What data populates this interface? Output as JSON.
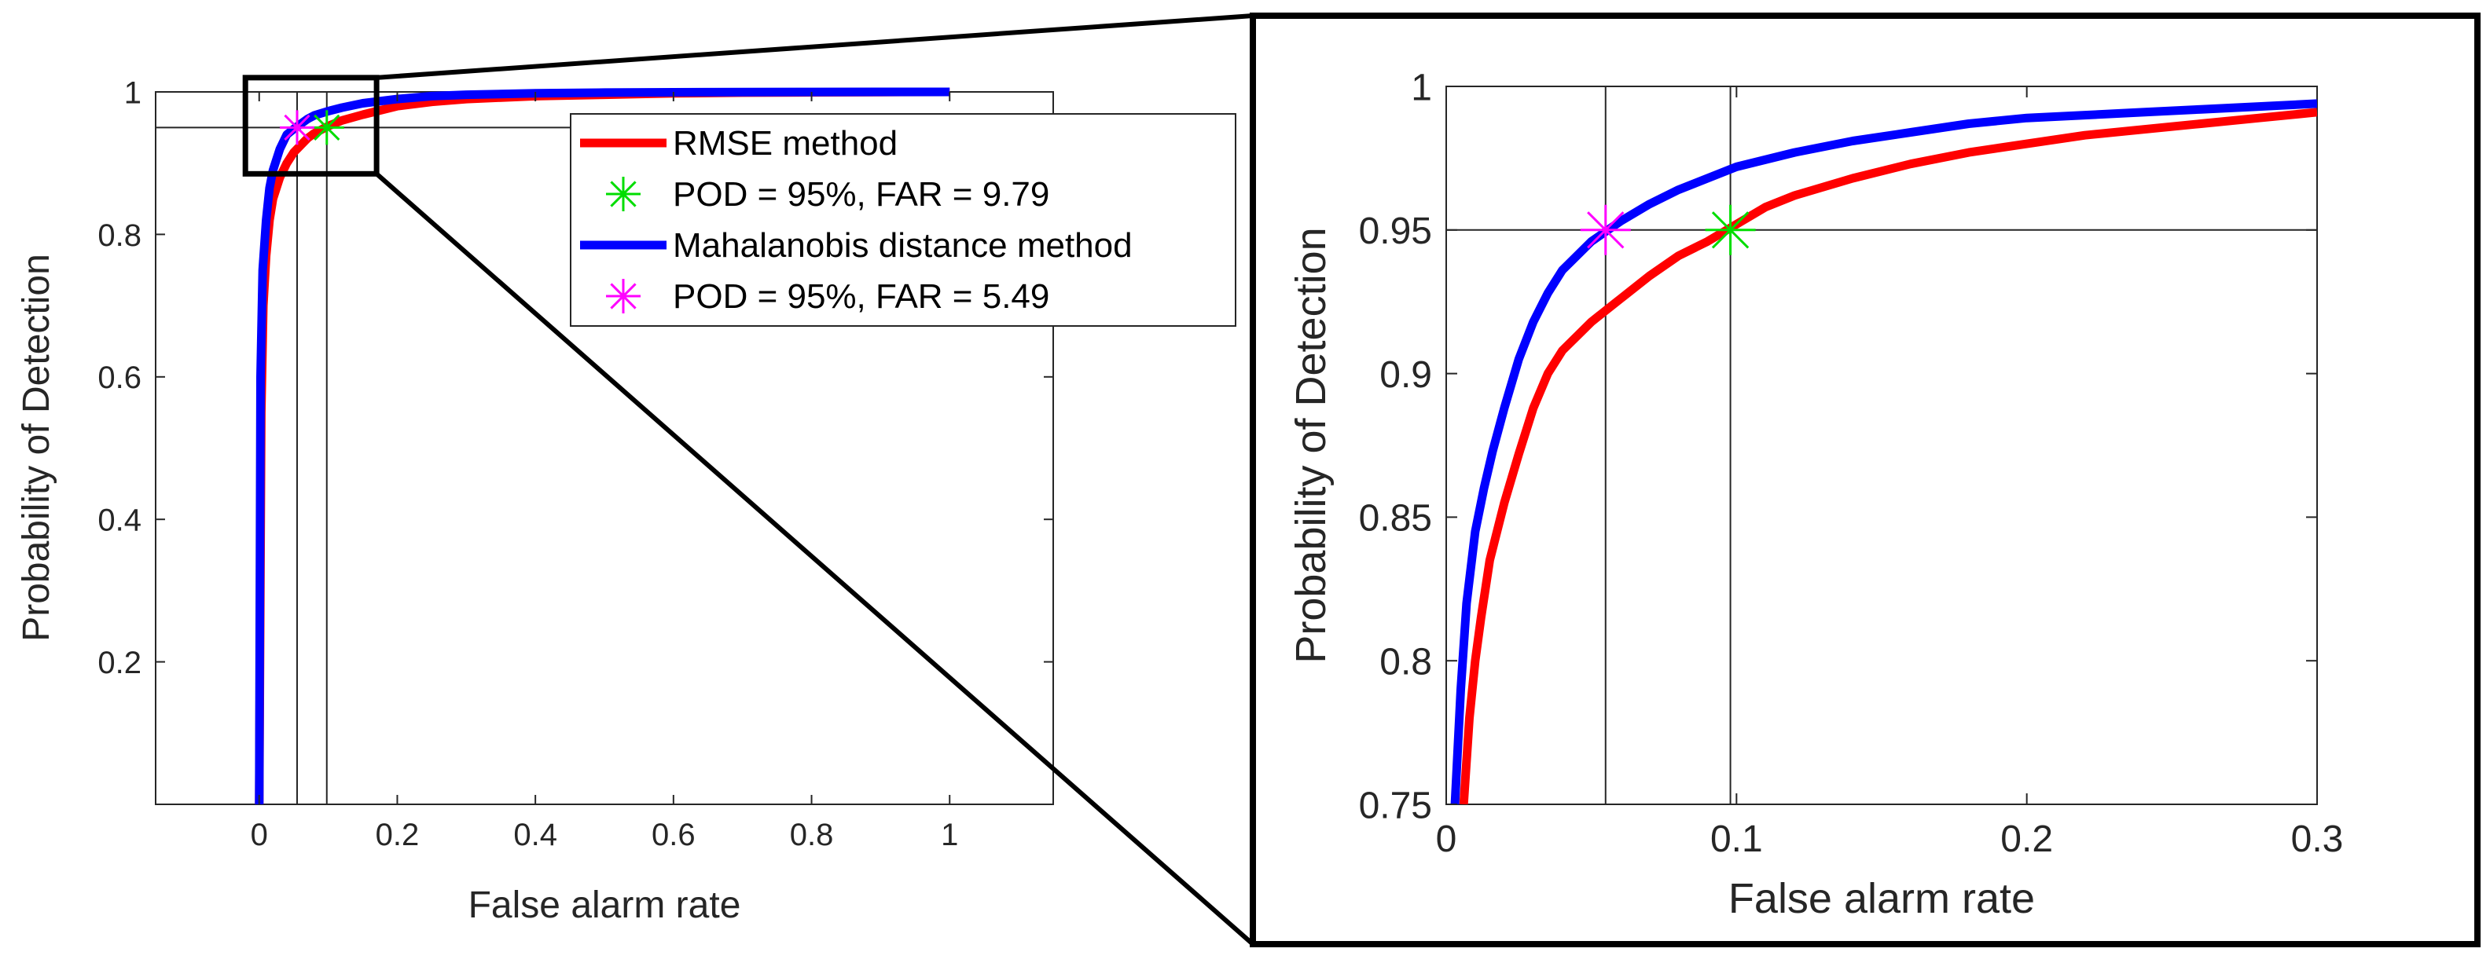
{
  "chart_data": [
    {
      "type": "line",
      "panel": "full",
      "xlabel": "False alarm rate",
      "ylabel": "Probability of Detection",
      "xlim": [
        -0.15,
        1.15
      ],
      "ylim": [
        0,
        1
      ],
      "xticks": [
        0,
        0.2,
        0.4,
        0.6,
        0.8,
        1
      ],
      "xtick_labels": [
        "0",
        "0.2",
        "0.4",
        "0.6",
        "0.8",
        "1"
      ],
      "yticks": [
        0.2,
        0.4,
        0.6,
        0.8,
        1
      ],
      "ytick_labels": [
        "0.2",
        "0.4",
        "0.6",
        "0.8",
        "1"
      ],
      "grid": false,
      "reference_lines": {
        "x": [
          0.0549,
          0.0979
        ],
        "y": [
          0.95
        ]
      },
      "series": [
        {
          "name": "RMSE method",
          "color": "#ff0000",
          "x": [
            0.0,
            0.003,
            0.006,
            0.01,
            0.015,
            0.02,
            0.03,
            0.04,
            0.05,
            0.06,
            0.07,
            0.08,
            0.09,
            0.1,
            0.12,
            0.15,
            0.2,
            0.25,
            0.3,
            0.4,
            0.5,
            0.6,
            0.7,
            0.8,
            0.9,
            1.0
          ],
          "y": [
            0.0,
            0.55,
            0.7,
            0.77,
            0.82,
            0.85,
            0.88,
            0.9,
            0.915,
            0.925,
            0.935,
            0.942,
            0.947,
            0.952,
            0.96,
            0.968,
            0.98,
            0.986,
            0.99,
            0.994,
            0.996,
            0.998,
            0.999,
            0.9995,
            0.9998,
            1.0
          ]
        },
        {
          "name": "Mahalanobis distance method",
          "color": "#0000ff",
          "x": [
            0.0,
            0.002,
            0.005,
            0.01,
            0.015,
            0.02,
            0.03,
            0.04,
            0.05,
            0.06,
            0.07,
            0.08,
            0.1,
            0.12,
            0.15,
            0.2,
            0.25,
            0.3,
            0.4,
            0.5,
            0.6,
            0.7,
            0.8,
            0.9,
            1.0
          ],
          "y": [
            0.0,
            0.6,
            0.75,
            0.82,
            0.865,
            0.89,
            0.92,
            0.94,
            0.948,
            0.955,
            0.962,
            0.967,
            0.973,
            0.978,
            0.984,
            0.99,
            0.994,
            0.996,
            0.998,
            0.999,
            0.9995,
            0.9998,
            0.9999,
            1.0,
            1.0
          ]
        }
      ],
      "markers": [
        {
          "name": "POD = 95%, FAR = 9.79",
          "x": 0.0979,
          "y": 0.95,
          "color": "#00dd00"
        },
        {
          "name": "POD = 95%, FAR = 5.49",
          "x": 0.0549,
          "y": 0.95,
          "color": "#ff00ff"
        }
      ],
      "legend": {
        "position": "top-right",
        "entries": [
          {
            "label": "RMSE method",
            "kind": "line",
            "color": "#ff0000"
          },
          {
            "label": "POD = 95%, FAR = 9.79",
            "kind": "star",
            "color": "#00dd00"
          },
          {
            "label": "Mahalanobis distance method",
            "kind": "line",
            "color": "#0000ff"
          },
          {
            "label": "POD = 95%, FAR = 5.49",
            "kind": "star",
            "color": "#ff00ff"
          }
        ]
      },
      "zoom_box": {
        "xlim": [
          -0.02,
          0.17
        ],
        "ylim": [
          0.885,
          1.02
        ]
      }
    },
    {
      "type": "line",
      "panel": "zoom",
      "xlabel": "False alarm rate",
      "ylabel": "Probability of Detection",
      "xlim": [
        0,
        0.3
      ],
      "ylim": [
        0.75,
        1
      ],
      "xticks": [
        0,
        0.1,
        0.2,
        0.3
      ],
      "xtick_labels": [
        "0",
        "0.1",
        "0.2",
        "0.3"
      ],
      "yticks": [
        0.75,
        0.8,
        0.85,
        0.9,
        0.95,
        1
      ],
      "ytick_labels": [
        "0.75",
        "0.8",
        "0.85",
        "0.9",
        "0.95",
        "1"
      ],
      "grid": false,
      "reference_lines": {
        "x": [
          0.0549,
          0.0979
        ],
        "y": [
          0.95
        ]
      },
      "series": [
        {
          "name": "RMSE method",
          "color": "#ff0000",
          "x": [
            0.006,
            0.008,
            0.01,
            0.012,
            0.015,
            0.02,
            0.025,
            0.03,
            0.035,
            0.04,
            0.05,
            0.06,
            0.07,
            0.08,
            0.09,
            0.1,
            0.11,
            0.12,
            0.14,
            0.16,
            0.18,
            0.2,
            0.22,
            0.24,
            0.26,
            0.28,
            0.3
          ],
          "y": [
            0.75,
            0.78,
            0.8,
            0.815,
            0.835,
            0.855,
            0.872,
            0.888,
            0.9,
            0.908,
            0.918,
            0.926,
            0.934,
            0.941,
            0.946,
            0.952,
            0.958,
            0.962,
            0.968,
            0.973,
            0.977,
            0.98,
            0.983,
            0.985,
            0.987,
            0.989,
            0.991
          ]
        },
        {
          "name": "Mahalanobis distance method",
          "color": "#0000ff",
          "x": [
            0.003,
            0.005,
            0.007,
            0.01,
            0.013,
            0.016,
            0.02,
            0.025,
            0.03,
            0.035,
            0.04,
            0.05,
            0.06,
            0.07,
            0.08,
            0.09,
            0.1,
            0.12,
            0.14,
            0.16,
            0.18,
            0.2,
            0.22,
            0.24,
            0.26,
            0.28,
            0.3
          ],
          "y": [
            0.75,
            0.79,
            0.82,
            0.845,
            0.86,
            0.873,
            0.888,
            0.905,
            0.918,
            0.928,
            0.936,
            0.946,
            0.953,
            0.959,
            0.964,
            0.968,
            0.972,
            0.977,
            0.981,
            0.984,
            0.987,
            0.989,
            0.99,
            0.991,
            0.992,
            0.993,
            0.994
          ]
        }
      ],
      "markers": [
        {
          "name": "POD = 95%, FAR = 9.79",
          "x": 0.0979,
          "y": 0.95,
          "color": "#00dd00"
        },
        {
          "name": "POD = 95%, FAR = 5.49",
          "x": 0.0549,
          "y": 0.95,
          "color": "#ff00ff"
        }
      ]
    }
  ]
}
